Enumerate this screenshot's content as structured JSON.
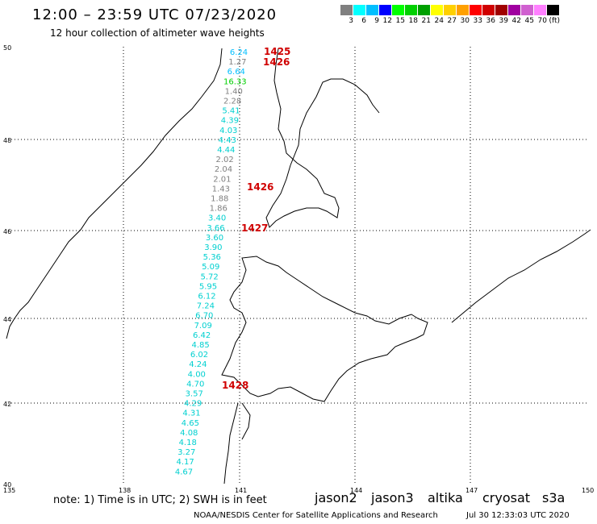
{
  "header": {
    "title": "12:00 – 23:59 UTC 07/23/2020",
    "subtitle": "12 hour collection of altimeter wave heights"
  },
  "color_scale": {
    "colors": [
      "#808080",
      "#00ffff",
      "#00bfff",
      "#0000ff",
      "#00ff00",
      "#00d000",
      "#00a000",
      "#ffff00",
      "#ffd000",
      "#ffa000",
      "#ff0000",
      "#d00000",
      "#a00000",
      "#a000a0",
      "#d060d0",
      "#ff80ff",
      "#000000"
    ],
    "labels": [
      "3",
      "6",
      "9",
      "12",
      "15",
      "18",
      "21",
      "24",
      "27",
      "30",
      "33",
      "36",
      "39",
      "42",
      "45",
      "70",
      "(ft)"
    ]
  },
  "axes": {
    "lon_labels": [
      "135",
      "138",
      "141",
      "144",
      "147",
      "150"
    ],
    "lat_labels": [
      "50",
      "48",
      "46",
      "44",
      "42",
      "40"
    ]
  },
  "track_values": [
    {
      "v": "6.24",
      "c": "#00bfff"
    },
    {
      "v": "1.27",
      "c": "#808080"
    },
    {
      "v": "6.64",
      "c": "#00bfff"
    },
    {
      "v": "16.33",
      "c": "#00d000"
    },
    {
      "v": "1.40",
      "c": "#808080"
    },
    {
      "v": "2.28",
      "c": "#808080"
    },
    {
      "v": "5.41",
      "c": "#00d0d0"
    },
    {
      "v": "4.39",
      "c": "#00d0d0"
    },
    {
      "v": "4.03",
      "c": "#00d0d0"
    },
    {
      "v": "4.43",
      "c": "#00d0d0"
    },
    {
      "v": "4.44",
      "c": "#00d0d0"
    },
    {
      "v": "2.02",
      "c": "#808080"
    },
    {
      "v": "2.04",
      "c": "#808080"
    },
    {
      "v": "2.01",
      "c": "#808080"
    },
    {
      "v": "1.43",
      "c": "#808080"
    },
    {
      "v": "1.88",
      "c": "#808080"
    },
    {
      "v": "1.86",
      "c": "#808080"
    },
    {
      "v": "3.40",
      "c": "#00d0d0"
    },
    {
      "v": "3.66",
      "c": "#00d0d0"
    },
    {
      "v": "3.60",
      "c": "#00d0d0"
    },
    {
      "v": "3.90",
      "c": "#00d0d0"
    },
    {
      "v": "5.36",
      "c": "#00d0d0"
    },
    {
      "v": "5.09",
      "c": "#00d0d0"
    },
    {
      "v": "5.72",
      "c": "#00d0d0"
    },
    {
      "v": "5.95",
      "c": "#00d0d0"
    },
    {
      "v": "6.12",
      "c": "#00d0d0"
    },
    {
      "v": "7.24",
      "c": "#00d0d0"
    },
    {
      "v": "6.70",
      "c": "#00d0d0"
    },
    {
      "v": "7.09",
      "c": "#00d0d0"
    },
    {
      "v": "6.42",
      "c": "#00d0d0"
    },
    {
      "v": "4.85",
      "c": "#00d0d0"
    },
    {
      "v": "6.02",
      "c": "#00d0d0"
    },
    {
      "v": "4.24",
      "c": "#00d0d0"
    },
    {
      "v": "4.00",
      "c": "#00d0d0"
    },
    {
      "v": "4.70",
      "c": "#00d0d0"
    },
    {
      "v": "3.57",
      "c": "#00d0d0"
    },
    {
      "v": "4.29",
      "c": "#00d0d0"
    },
    {
      "v": "4.31",
      "c": "#00d0d0"
    },
    {
      "v": "4.65",
      "c": "#00d0d0"
    },
    {
      "v": "4.08",
      "c": "#00d0d0"
    },
    {
      "v": "4.18",
      "c": "#00d0d0"
    },
    {
      "v": "3.27",
      "c": "#00d0d0"
    },
    {
      "v": "4.17",
      "c": "#00d0d0"
    },
    {
      "v": "4.67",
      "c": "#00d0d0"
    }
  ],
  "time_labels": [
    "1425",
    "1426",
    "1426",
    "1427",
    "1428"
  ],
  "footer": {
    "note": "note:  1) Time is in UTC;  2) SWH is in feet",
    "satellites": [
      {
        "name": "jason2",
        "color": "#0000ff"
      },
      {
        "name": "jason3",
        "color": "#00a000"
      },
      {
        "name": "altika",
        "color": "#ff9900"
      },
      {
        "name": "cryosat",
        "color": "#ff0000"
      },
      {
        "name": "s3a",
        "color": "#a00000"
      }
    ],
    "credit": "NOAA/NESDIS Center for Satellite Applications and Research",
    "timestamp": "Jul 30 12:33:03 UTC 2020"
  }
}
